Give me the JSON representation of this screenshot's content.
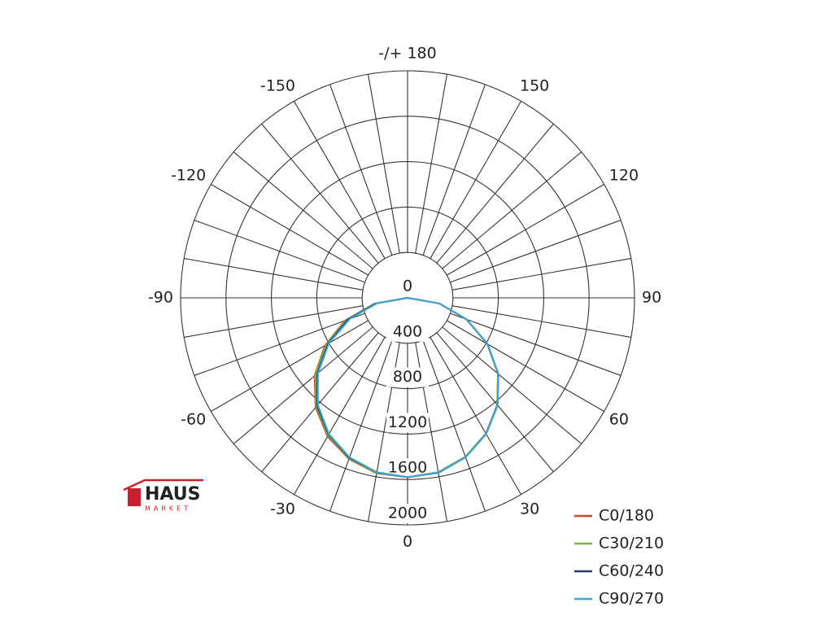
{
  "chart_data": {
    "type": "polar",
    "x": [
      -90,
      -80,
      -70,
      -60,
      -50,
      -40,
      -30,
      -20,
      -10,
      0,
      10,
      20,
      30,
      40,
      50,
      60,
      70,
      80,
      90
    ],
    "series": [
      {
        "name": "C0/180",
        "color": "#c8452c",
        "values": [
          0,
          300,
          590,
          840,
          1070,
          1260,
          1410,
          1510,
          1570,
          1580,
          1560,
          1490,
          1380,
          1230,
          1040,
          810,
          550,
          280,
          0
        ]
      },
      {
        "name": "C30/210",
        "color": "#7cb342",
        "values": [
          0,
          290,
          580,
          830,
          1060,
          1250,
          1400,
          1505,
          1565,
          1580,
          1560,
          1490,
          1380,
          1230,
          1040,
          810,
          550,
          280,
          0
        ]
      },
      {
        "name": "C60/240",
        "color": "#2b3a6b",
        "values": [
          0,
          280,
          560,
          810,
          1040,
          1240,
          1390,
          1500,
          1560,
          1580,
          1565,
          1495,
          1385,
          1235,
          1045,
          815,
          555,
          285,
          0
        ]
      },
      {
        "name": "C90/270",
        "color": "#3aa6d8",
        "values": [
          0,
          270,
          540,
          800,
          1030,
          1230,
          1385,
          1495,
          1560,
          1580,
          1565,
          1495,
          1385,
          1235,
          1045,
          815,
          555,
          285,
          0
        ]
      }
    ],
    "rlim": [
      0,
      2000
    ],
    "rticks": [
      0,
      400,
      800,
      1200,
      1600,
      2000
    ],
    "xticks": [
      -150,
      -120,
      -90,
      -60,
      -30,
      0,
      30,
      60,
      90,
      120,
      150,
      {
        "value": 180,
        "label": "-/+ 180"
      }
    ],
    "legend": "lower right"
  },
  "logo": {
    "name": "HAUS",
    "tagline": "MARKET"
  }
}
